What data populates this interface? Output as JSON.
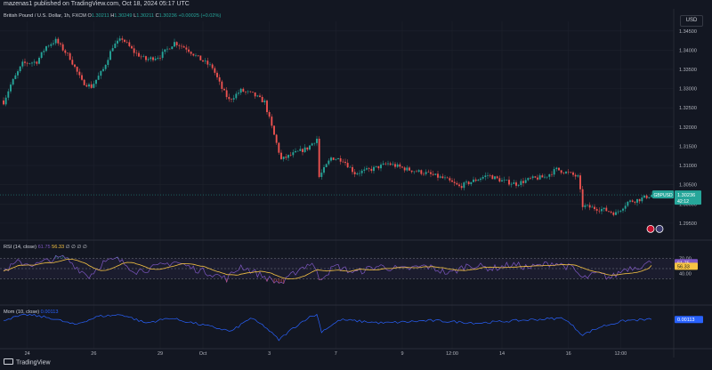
{
  "header": {
    "published": "mazenas1 published on TradingView.com, Oct 18, 2024 05:17 UTC"
  },
  "legend": {
    "symbol": "British Pound / U.S. Dollar, 1h, FXCM",
    "open_label": "O",
    "open": "1.30211",
    "high_label": "H",
    "high": "1.30249",
    "low_label": "L",
    "low": "1.30211",
    "close_label": "C",
    "close": "1.30236",
    "change": "+0.00025 (+0.02%)"
  },
  "currency": "USD",
  "last_price": {
    "symbol": "GBPUSD",
    "price": "1.30236",
    "countdown": "42:12"
  },
  "rsi": {
    "title": "RSI (14, close)",
    "rsi_value": "61.75",
    "ma_value": "56.33",
    "extra": "∅ ∅ ∅ ∅",
    "label_rsi": "61.75",
    "label_ma": "56.33",
    "ticks": [
      "70.00",
      "40.00"
    ]
  },
  "momentum": {
    "title": "Mom (10, close)",
    "value": "0.00113"
  },
  "footer": {
    "brand": "TradingView"
  },
  "colors": {
    "up": "#26a69a",
    "down": "#ef5350",
    "rsi": "#7e57c2",
    "rsi_ma": "#f6c343",
    "momentum": "#2962ff",
    "background": "#131722"
  },
  "chart_data": [
    {
      "type": "candlestick",
      "title": "British Pound / U.S. Dollar, 1h, FXCM",
      "y_ticks": [
        "1.34500",
        "1.34000",
        "1.33500",
        "1.33000",
        "1.32500",
        "1.32000",
        "1.31500",
        "1.31000",
        "1.30500",
        "1.30000",
        "1.29500"
      ],
      "y_tick_values": [
        1.345,
        1.34,
        1.335,
        1.33,
        1.325,
        1.32,
        1.315,
        1.31,
        1.305,
        1.3,
        1.295
      ],
      "ylim": [
        1.2915,
        1.3475
      ],
      "x_ticks": [
        "24",
        "26",
        "29",
        "Oct",
        "3",
        "7",
        "9",
        "12:00",
        "14",
        "16",
        "12:00"
      ],
      "x_tick_index": [
        10,
        38,
        66,
        84,
        112,
        140,
        168,
        189,
        210,
        238,
        260
      ],
      "last_close": 1.30236,
      "waypoints": [
        {
          "index": 0,
          "price": 1.3265
        },
        {
          "index": 3,
          "price": 1.331
        },
        {
          "index": 8,
          "price": 1.3365
        },
        {
          "index": 14,
          "price": 1.337
        },
        {
          "index": 18,
          "price": 1.341
        },
        {
          "index": 22,
          "price": 1.3425
        },
        {
          "index": 28,
          "price": 1.338
        },
        {
          "index": 33,
          "price": 1.3318
        },
        {
          "index": 37,
          "price": 1.3305
        },
        {
          "index": 42,
          "price": 1.335
        },
        {
          "index": 46,
          "price": 1.341
        },
        {
          "index": 50,
          "price": 1.343
        },
        {
          "index": 55,
          "price": 1.3395
        },
        {
          "index": 60,
          "price": 1.3375
        },
        {
          "index": 66,
          "price": 1.3385
        },
        {
          "index": 72,
          "price": 1.342
        },
        {
          "index": 77,
          "price": 1.3405
        },
        {
          "index": 82,
          "price": 1.338
        },
        {
          "index": 88,
          "price": 1.3355
        },
        {
          "index": 92,
          "price": 1.33
        },
        {
          "index": 95,
          "price": 1.327
        },
        {
          "index": 100,
          "price": 1.3295
        },
        {
          "index": 105,
          "price": 1.3285
        },
        {
          "index": 110,
          "price": 1.3265
        },
        {
          "index": 113,
          "price": 1.32
        },
        {
          "index": 117,
          "price": 1.3115
        },
        {
          "index": 122,
          "price": 1.313
        },
        {
          "index": 128,
          "price": 1.3145
        },
        {
          "index": 132,
          "price": 1.317
        },
        {
          "index": 133,
          "price": 1.307
        },
        {
          "index": 138,
          "price": 1.312
        },
        {
          "index": 143,
          "price": 1.3115
        },
        {
          "index": 148,
          "price": 1.308
        },
        {
          "index": 155,
          "price": 1.309
        },
        {
          "index": 162,
          "price": 1.3105
        },
        {
          "index": 170,
          "price": 1.309
        },
        {
          "index": 178,
          "price": 1.308
        },
        {
          "index": 186,
          "price": 1.3065
        },
        {
          "index": 192,
          "price": 1.3045
        },
        {
          "index": 198,
          "price": 1.306
        },
        {
          "index": 204,
          "price": 1.3075
        },
        {
          "index": 210,
          "price": 1.306
        },
        {
          "index": 216,
          "price": 1.3052
        },
        {
          "index": 222,
          "price": 1.3065
        },
        {
          "index": 228,
          "price": 1.307
        },
        {
          "index": 233,
          "price": 1.309
        },
        {
          "index": 238,
          "price": 1.308
        },
        {
          "index": 242,
          "price": 1.307
        },
        {
          "index": 244,
          "price": 1.2995
        },
        {
          "index": 248,
          "price": 1.299
        },
        {
          "index": 253,
          "price": 1.2985
        },
        {
          "index": 258,
          "price": 1.2975
        },
        {
          "index": 263,
          "price": 1.3005
        },
        {
          "index": 268,
          "price": 1.3012
        },
        {
          "index": 273,
          "price": 1.30236
        }
      ]
    },
    {
      "type": "line",
      "title": "RSI (14, close)",
      "ylim": [
        15,
        85
      ],
      "levels": [
        70,
        50,
        30
      ],
      "waypoints": [
        {
          "index": 0,
          "value": 45
        },
        {
          "index": 6,
          "value": 62
        },
        {
          "index": 14,
          "value": 58
        },
        {
          "index": 20,
          "value": 68
        },
        {
          "index": 26,
          "value": 72
        },
        {
          "index": 32,
          "value": 48
        },
        {
          "index": 36,
          "value": 35
        },
        {
          "index": 42,
          "value": 62
        },
        {
          "index": 48,
          "value": 68
        },
        {
          "index": 56,
          "value": 45
        },
        {
          "index": 64,
          "value": 52
        },
        {
          "index": 72,
          "value": 64
        },
        {
          "index": 80,
          "value": 50
        },
        {
          "index": 88,
          "value": 40
        },
        {
          "index": 94,
          "value": 30
        },
        {
          "index": 100,
          "value": 55
        },
        {
          "index": 108,
          "value": 38
        },
        {
          "index": 114,
          "value": 25
        },
        {
          "index": 118,
          "value": 22
        },
        {
          "index": 124,
          "value": 48
        },
        {
          "index": 130,
          "value": 62
        },
        {
          "index": 133,
          "value": 30
        },
        {
          "index": 140,
          "value": 55
        },
        {
          "index": 148,
          "value": 42
        },
        {
          "index": 158,
          "value": 55
        },
        {
          "index": 168,
          "value": 48
        },
        {
          "index": 178,
          "value": 55
        },
        {
          "index": 188,
          "value": 40
        },
        {
          "index": 196,
          "value": 58
        },
        {
          "index": 206,
          "value": 50
        },
        {
          "index": 214,
          "value": 58
        },
        {
          "index": 222,
          "value": 52
        },
        {
          "index": 232,
          "value": 62
        },
        {
          "index": 240,
          "value": 50
        },
        {
          "index": 244,
          "value": 30
        },
        {
          "index": 250,
          "value": 40
        },
        {
          "index": 256,
          "value": 32
        },
        {
          "index": 262,
          "value": 50
        },
        {
          "index": 268,
          "value": 55
        },
        {
          "index": 273,
          "value": 61.75
        }
      ],
      "ma_last": 56.33
    },
    {
      "type": "line",
      "title": "Mom (10, close)",
      "waypoints": [
        {
          "index": 0,
          "value": 0.001
        },
        {
          "index": 10,
          "value": 0.004
        },
        {
          "index": 20,
          "value": 0.002
        },
        {
          "index": 30,
          "value": -0.002
        },
        {
          "index": 40,
          "value": 0.003
        },
        {
          "index": 50,
          "value": 0.004
        },
        {
          "index": 60,
          "value": -0.001
        },
        {
          "index": 70,
          "value": 0.002
        },
        {
          "index": 80,
          "value": -0.001
        },
        {
          "index": 90,
          "value": -0.004
        },
        {
          "index": 96,
          "value": -0.006
        },
        {
          "index": 104,
          "value": 0.002
        },
        {
          "index": 110,
          "value": -0.003
        },
        {
          "index": 116,
          "value": -0.011
        },
        {
          "index": 122,
          "value": -0.004
        },
        {
          "index": 128,
          "value": 0.002
        },
        {
          "index": 132,
          "value": 0.004
        },
        {
          "index": 134,
          "value": -0.006
        },
        {
          "index": 142,
          "value": 0.001
        },
        {
          "index": 160,
          "value": -0.001
        },
        {
          "index": 180,
          "value": 0.0005
        },
        {
          "index": 200,
          "value": -0.001
        },
        {
          "index": 220,
          "value": 0.0008
        },
        {
          "index": 236,
          "value": 0.002
        },
        {
          "index": 244,
          "value": -0.008
        },
        {
          "index": 252,
          "value": -0.003
        },
        {
          "index": 262,
          "value": 0.0005
        },
        {
          "index": 273,
          "value": 0.00113
        }
      ]
    }
  ]
}
